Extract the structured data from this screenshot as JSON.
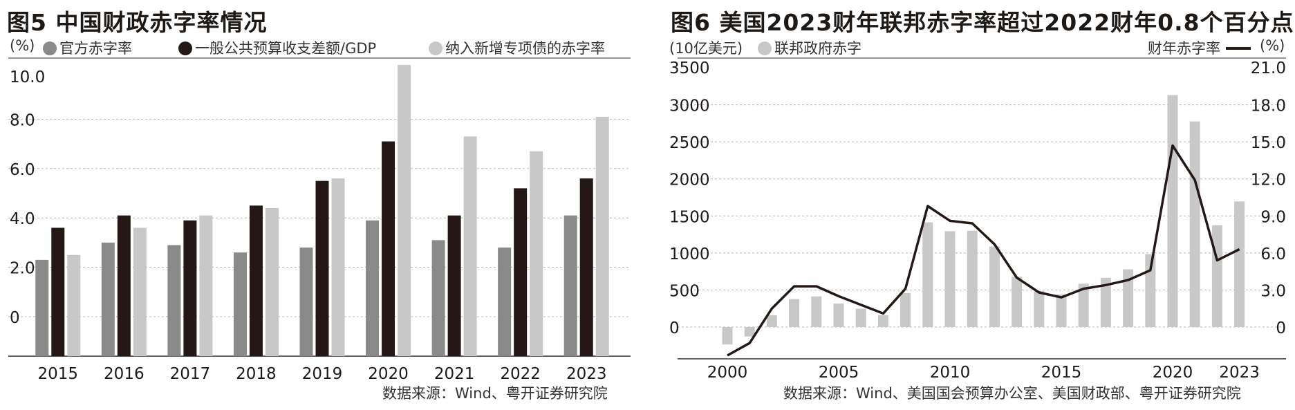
{
  "left": {
    "title": "图5 中国财政赤字率情况",
    "unit": "(%)",
    "source": "数据来源：Wind、粤开证券研究院",
    "colors": {
      "official": "#8a8a8a",
      "general": "#231815",
      "special": "#c8c8c8"
    },
    "chart_data": {
      "type": "bar",
      "categories": [
        "2015",
        "2016",
        "2017",
        "2018",
        "2019",
        "2020",
        "2021",
        "2022",
        "2023"
      ],
      "series": [
        {
          "name": "官方赤字率",
          "values": [
            2.3,
            3.0,
            2.9,
            2.6,
            2.8,
            3.9,
            3.1,
            2.8,
            4.1
          ]
        },
        {
          "name": "一般公共预算收支差额/GDP",
          "values": [
            3.6,
            4.1,
            3.9,
            4.5,
            5.5,
            7.1,
            4.1,
            5.2,
            5.6
          ]
        },
        {
          "name": "纳入新增专项债的赤字率",
          "values": [
            2.5,
            3.6,
            4.1,
            4.4,
            5.6,
            10.2,
            7.3,
            6.7,
            8.1
          ]
        }
      ],
      "y_ticks": [
        "10.0",
        "8.0",
        "6.0",
        "4.0",
        "2.0",
        "0"
      ],
      "ylim": [
        -1.6,
        10.0
      ],
      "grid": true,
      "legend": "top"
    }
  },
  "right": {
    "title": "图6 美国2023财年联邦赤字率超过2022财年0.8个百分点",
    "unit_left": "(10亿美元)",
    "unit_right": "(%)",
    "source": "数据来源：Wind、美国国会预算办公室、美国财政部、粤开证券研究院",
    "colors": {
      "bar": "#c8c8c8",
      "line": "#231815"
    },
    "chart_data": {
      "type": "bar+line",
      "x": [
        2000,
        2001,
        2002,
        2003,
        2004,
        2005,
        2006,
        2007,
        2008,
        2009,
        2010,
        2011,
        2012,
        2013,
        2014,
        2015,
        2016,
        2017,
        2018,
        2019,
        2020,
        2021,
        2022,
        2023
      ],
      "x_ticks": [
        "2000",
        "2005",
        "2010",
        "2015",
        "2020",
        "2023"
      ],
      "series": [
        {
          "name": "联邦政府赤字",
          "axis": "left",
          "values": [
            -236,
            -128,
            158,
            378,
            413,
            318,
            248,
            161,
            459,
            1413,
            1294,
            1300,
            1087,
            680,
            485,
            439,
            585,
            665,
            779,
            984,
            3132,
            2775,
            1375,
            1695
          ]
        },
        {
          "name": "财年赤字率",
          "axis": "right",
          "values": [
            -2.3,
            -1.3,
            1.5,
            3.3,
            3.3,
            2.5,
            1.8,
            1.1,
            3.1,
            9.8,
            8.6,
            8.4,
            6.7,
            4.0,
            2.8,
            2.4,
            3.1,
            3.4,
            3.8,
            4.6,
            14.7,
            11.9,
            5.4,
            6.3
          ]
        }
      ],
      "y_left_ticks": [
        "3500",
        "3000",
        "2500",
        "2000",
        "1500",
        "1000",
        "500",
        "0"
      ],
      "y_right_ticks": [
        "21.0",
        "18.0",
        "15.0",
        "12.0",
        "9.0",
        "6.0",
        "3.0",
        "0"
      ],
      "ylim_left": [
        -500,
        3500
      ],
      "ylim_right": [
        -3.0,
        21.0
      ],
      "grid": true,
      "legend": "top"
    }
  }
}
